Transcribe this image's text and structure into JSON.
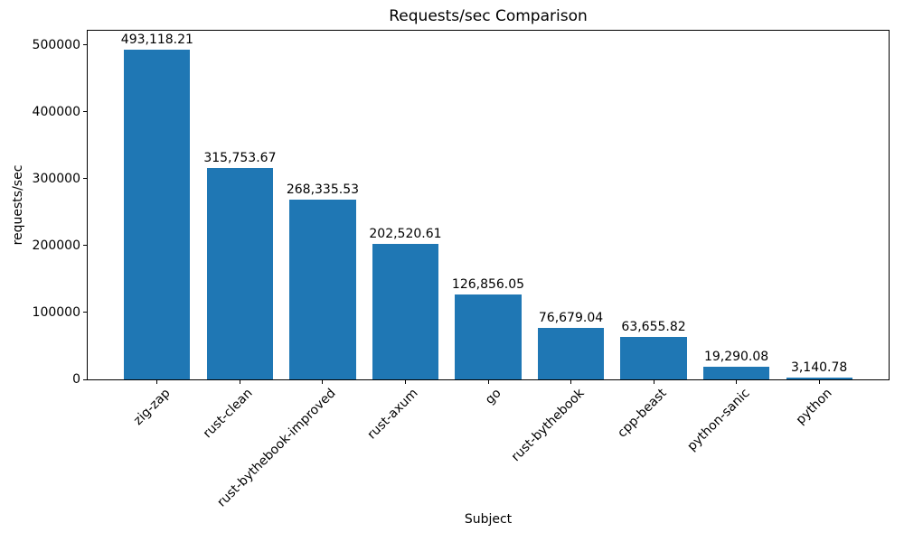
{
  "chart_data": {
    "type": "bar",
    "title": "Requests/sec Comparison",
    "xlabel": "Subject",
    "ylabel": "requests/sec",
    "categories": [
      "zig-zap",
      "rust-clean",
      "rust-bythebook-improved",
      "rust-axum",
      "go",
      "rust-bythebook",
      "cpp-beast",
      "python-sanic",
      "python"
    ],
    "values": [
      493118.21,
      315753.67,
      268335.53,
      202520.61,
      126856.05,
      76679.04,
      63655.82,
      19290.08,
      3140.78
    ],
    "value_labels": [
      "493,118.21",
      "315,753.67",
      "268,335.53",
      "202,520.61",
      "126,856.05",
      "76,679.04",
      "63,655.82",
      "19,290.08",
      "3,140.78"
    ],
    "y_ticks": [
      0,
      100000,
      200000,
      300000,
      400000,
      500000
    ],
    "y_tick_labels": [
      "0",
      "100000",
      "200000",
      "300000",
      "400000",
      "500000"
    ],
    "ylim": [
      0,
      521500
    ],
    "bar_color": "#1f77b4",
    "grid": false,
    "legend": null,
    "x_tick_rotation": 45
  }
}
